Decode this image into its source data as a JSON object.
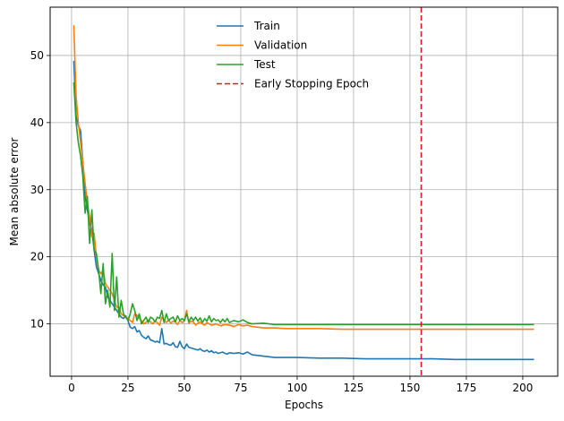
{
  "chart_data": {
    "type": "line",
    "title": "",
    "xlabel": "Epochs",
    "ylabel": "Mean absolute error",
    "xlim": [
      -9.5,
      215.5
    ],
    "ylim": [
      2.2,
      57.2
    ],
    "xticks": [
      0,
      25,
      50,
      75,
      100,
      125,
      150,
      175,
      200
    ],
    "yticks": [
      10,
      20,
      30,
      40,
      50
    ],
    "grid": true,
    "legend": "top-center",
    "series": [
      {
        "name": "Train",
        "color": "#1f77b4",
        "x": [
          1,
          2,
          3,
          4,
          5,
          6,
          7,
          8,
          9,
          10,
          11,
          12,
          13,
          14,
          15,
          16,
          17,
          18,
          19,
          20,
          21,
          22,
          23,
          24,
          25,
          26,
          27,
          28,
          29,
          30,
          31,
          32,
          33,
          34,
          35,
          36,
          37,
          38,
          39,
          40,
          41,
          42,
          43,
          44,
          45,
          46,
          47,
          48,
          49,
          50,
          51,
          52,
          53,
          54,
          55,
          56,
          57,
          58,
          59,
          60,
          61,
          62,
          63,
          64,
          65,
          66,
          67,
          68,
          69,
          70,
          72,
          74,
          76,
          78,
          80,
          85,
          90,
          95,
          100,
          110,
          120,
          130,
          140,
          150,
          160,
          170,
          180,
          190,
          200,
          205
        ],
        "y": [
          49.2,
          41.0,
          39.5,
          38.8,
          34.0,
          29.0,
          27.0,
          25.0,
          24.0,
          21.0,
          18.5,
          17.5,
          16.5,
          15.8,
          15.5,
          14.0,
          13.5,
          13.0,
          12.5,
          12.0,
          11.5,
          11.0,
          10.8,
          11.2,
          10.5,
          9.5,
          9.3,
          9.6,
          8.8,
          9.0,
          8.3,
          8.0,
          7.8,
          8.2,
          7.6,
          7.5,
          7.3,
          7.4,
          7.2,
          9.3,
          7.0,
          7.1,
          6.9,
          6.8,
          7.2,
          6.6,
          6.5,
          7.4,
          6.6,
          6.3,
          7.0,
          6.5,
          6.4,
          6.3,
          6.2,
          6.1,
          6.3,
          6.0,
          5.9,
          6.1,
          5.8,
          6.0,
          5.7,
          5.8,
          5.6,
          5.7,
          5.8,
          5.6,
          5.5,
          5.7,
          5.6,
          5.7,
          5.5,
          5.8,
          5.4,
          5.2,
          5.0,
          5.0,
          5.0,
          4.9,
          4.9,
          4.8,
          4.8,
          4.8,
          4.8,
          4.7,
          4.7,
          4.7,
          4.7,
          4.7
        ]
      },
      {
        "name": "Validation",
        "color": "#ff7f0e",
        "x": [
          1,
          2,
          3,
          4,
          5,
          6,
          7,
          8,
          9,
          10,
          11,
          12,
          13,
          14,
          15,
          16,
          17,
          18,
          19,
          20,
          21,
          22,
          23,
          24,
          25,
          26,
          27,
          28,
          29,
          30,
          31,
          32,
          33,
          34,
          35,
          36,
          37,
          38,
          39,
          40,
          41,
          42,
          43,
          44,
          45,
          46,
          47,
          48,
          49,
          50,
          51,
          52,
          53,
          54,
          55,
          56,
          57,
          58,
          59,
          60,
          62,
          64,
          66,
          68,
          70,
          72,
          74,
          76,
          78,
          80,
          85,
          90,
          95,
          100,
          110,
          120,
          130,
          140,
          150,
          160,
          170,
          180,
          190,
          200,
          205
        ],
        "y": [
          54.5,
          44.0,
          40.0,
          37.0,
          34.0,
          31.0,
          28.0,
          26.0,
          23.0,
          23.5,
          20.0,
          18.0,
          17.5,
          18.0,
          16.0,
          15.5,
          15.0,
          14.5,
          13.5,
          12.5,
          12.5,
          11.5,
          11.2,
          11.0,
          10.8,
          10.5,
          10.2,
          11.5,
          11.3,
          10.8,
          10.5,
          10.0,
          10.2,
          10.6,
          10.3,
          10.0,
          10.4,
          10.2,
          9.8,
          11.0,
          10.5,
          10.2,
          10.6,
          10.1,
          10.4,
          10.3,
          9.9,
          10.5,
          10.2,
          10.4,
          12.0,
          10.1,
          10.4,
          10.3,
          9.8,
          10.1,
          10.3,
          10.0,
          9.8,
          10.2,
          9.8,
          10.0,
          9.7,
          9.9,
          9.8,
          9.6,
          9.9,
          9.7,
          9.8,
          9.6,
          9.4,
          9.4,
          9.3,
          9.3,
          9.3,
          9.2,
          9.2,
          9.2,
          9.2,
          9.2,
          9.2,
          9.2,
          9.2,
          9.2,
          9.2
        ]
      },
      {
        "name": "Test",
        "color": "#2ca02c",
        "x": [
          1,
          2,
          3,
          4,
          5,
          6,
          7,
          8,
          9,
          10,
          11,
          12,
          13,
          14,
          15,
          16,
          17,
          18,
          19,
          20,
          21,
          22,
          23,
          24,
          25,
          26,
          27,
          28,
          29,
          30,
          31,
          32,
          33,
          34,
          35,
          36,
          37,
          38,
          39,
          40,
          41,
          42,
          43,
          44,
          45,
          46,
          47,
          48,
          49,
          50,
          51,
          52,
          53,
          54,
          55,
          56,
          57,
          58,
          59,
          60,
          61,
          62,
          63,
          64,
          65,
          66,
          67,
          68,
          69,
          70,
          72,
          74,
          76,
          78,
          80,
          85,
          90,
          95,
          100,
          110,
          120,
          130,
          140,
          150,
          160,
          170,
          180,
          190,
          200,
          205
        ],
        "y": [
          46.0,
          40.0,
          37.0,
          35.0,
          32.0,
          26.5,
          29.0,
          22.0,
          27.0,
          21.0,
          20.5,
          18.0,
          14.5,
          19.0,
          13.0,
          15.0,
          12.5,
          20.5,
          12.0,
          17.0,
          11.0,
          13.5,
          11.5,
          11.0,
          10.5,
          11.5,
          13.0,
          12.0,
          10.5,
          11.5,
          10.0,
          10.5,
          11.0,
          10.2,
          11.0,
          10.8,
          10.3,
          11.0,
          10.8,
          12.0,
          10.2,
          11.5,
          10.5,
          10.8,
          11.0,
          10.3,
          11.2,
          10.5,
          10.8,
          10.5,
          11.5,
          10.3,
          11.0,
          10.5,
          11.0,
          10.4,
          10.9,
          10.2,
          10.8,
          10.4,
          11.2,
          10.3,
          10.8,
          10.5,
          10.6,
          10.2,
          10.7,
          10.3,
          10.8,
          10.2,
          10.5,
          10.3,
          10.6,
          10.2,
          10.0,
          10.1,
          9.9,
          9.9,
          9.9,
          9.9,
          9.9,
          9.9,
          9.9,
          9.9,
          9.9,
          9.9,
          9.9,
          9.9,
          9.9,
          9.9
        ]
      }
    ],
    "vlines": [
      {
        "name": "Early Stopping Epoch",
        "x": 155,
        "color": "#e31a1c",
        "style": "dashed"
      }
    ]
  }
}
